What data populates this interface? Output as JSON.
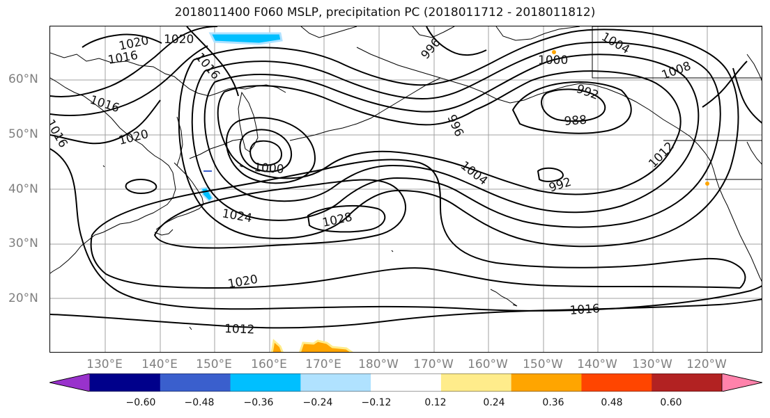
{
  "title": "2018011400 F060 MSLP, precipitation PC (2018011712 - 2018011812)",
  "lat_labels": [
    "60°N",
    "50°N",
    "40°N",
    "30°N",
    "20°N"
  ],
  "lon_labels": [
    "130°E",
    "140°E",
    "150°E",
    "160°E",
    "170°E",
    "180°W",
    "170°W",
    "160°W",
    "150°W",
    "140°W",
    "130°W",
    "120°W"
  ],
  "isobar_labels": [
    "1020",
    "1020",
    "1016",
    "1016",
    "996",
    "1000",
    "1004",
    "1008",
    "1016",
    "1016",
    "1020",
    "996",
    "992",
    "988",
    "1000",
    "1004",
    "992",
    "1012",
    "1024",
    "1028",
    "1020",
    "1016",
    "1012"
  ],
  "colorbar": {
    "ticks": [
      "−0.60",
      "−0.48",
      "−0.36",
      "−0.24",
      "−0.12",
      "0.12",
      "0.24",
      "0.36",
      "0.48",
      "0.60"
    ],
    "colors": [
      "#9932cc",
      "#00008b",
      "#3a5fcd",
      "#00bfff",
      "#b0e2ff",
      "#ffffff",
      "#ffec8b",
      "#ffa500",
      "#ff4500",
      "#b22222",
      "#ff82ab"
    ]
  }
}
